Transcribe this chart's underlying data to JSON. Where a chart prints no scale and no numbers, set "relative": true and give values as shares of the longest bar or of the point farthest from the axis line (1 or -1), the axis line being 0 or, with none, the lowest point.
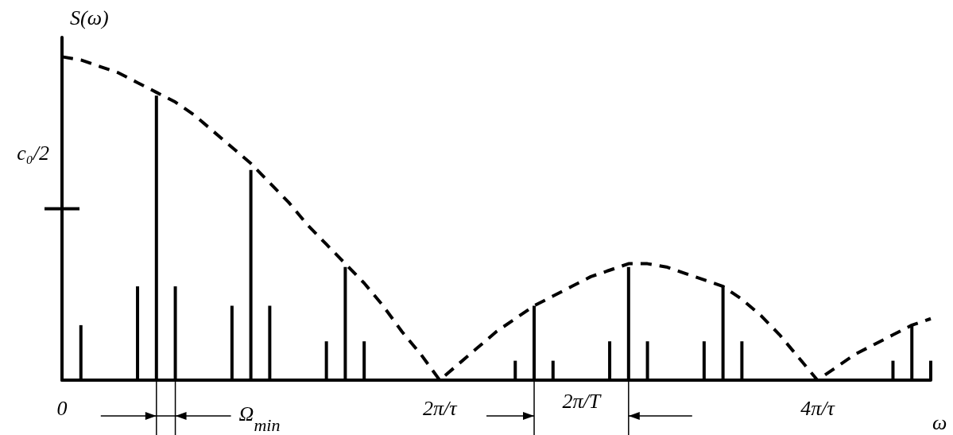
{
  "chart_data": {
    "type": "bar",
    "relative": true,
    "ylabel": "S(ω)",
    "xlabel": "ω",
    "grid": false,
    "categories": [
      "0",
      null,
      null,
      null,
      null,
      null,
      null,
      null,
      null,
      null,
      null,
      null,
      null,
      null,
      null,
      null,
      null,
      null,
      null,
      null,
      "2π/τ",
      null,
      null,
      null,
      null,
      null,
      null,
      null,
      null,
      null,
      null,
      null,
      null,
      null,
      null,
      null,
      null,
      null,
      null,
      null,
      "4π/τ",
      null,
      null,
      null,
      null,
      null,
      null
    ],
    "series": [
      {
        "color": "#000000",
        "values": [
          null,
          0.17,
          null,
          null,
          0.29,
          0.88,
          0.29,
          null,
          null,
          0.23,
          0.65,
          0.23,
          null,
          null,
          0.12,
          0.35,
          0.12,
          null,
          null,
          null,
          null,
          null,
          null,
          null,
          0.06,
          0.23,
          0.06,
          null,
          null,
          0.12,
          0.35,
          0.12,
          null,
          null,
          0.12,
          0.29,
          0.12,
          null,
          null,
          null,
          null,
          null,
          null,
          null,
          0.06,
          0.17,
          0.06
        ]
      },
      {
        "type": "line",
        "color": "#000000",
        "line_style": "dashed",
        "marker": "none",
        "values": [
          1,
          0.99,
          0.97,
          0.95,
          0.92,
          0.89,
          0.86,
          0.82,
          0.77,
          0.72,
          0.67,
          0.61,
          0.55,
          0.48,
          0.42,
          0.36,
          0.3,
          0.23,
          0.15,
          0.08,
          0,
          0.05,
          0.1,
          0.15,
          0.19,
          0.23,
          0.26,
          0.29,
          0.32,
          0.34,
          0.36,
          0.36,
          0.35,
          0.33,
          0.31,
          0.29,
          0.25,
          0.2,
          0.14,
          0.07,
          0,
          0.04,
          0.08,
          0.11,
          0.14,
          0.17,
          0.19
        ]
      }
    ],
    "annotations": [
      "c₀/2",
      "Ω$_{min}$",
      "2π/T"
    ]
  }
}
